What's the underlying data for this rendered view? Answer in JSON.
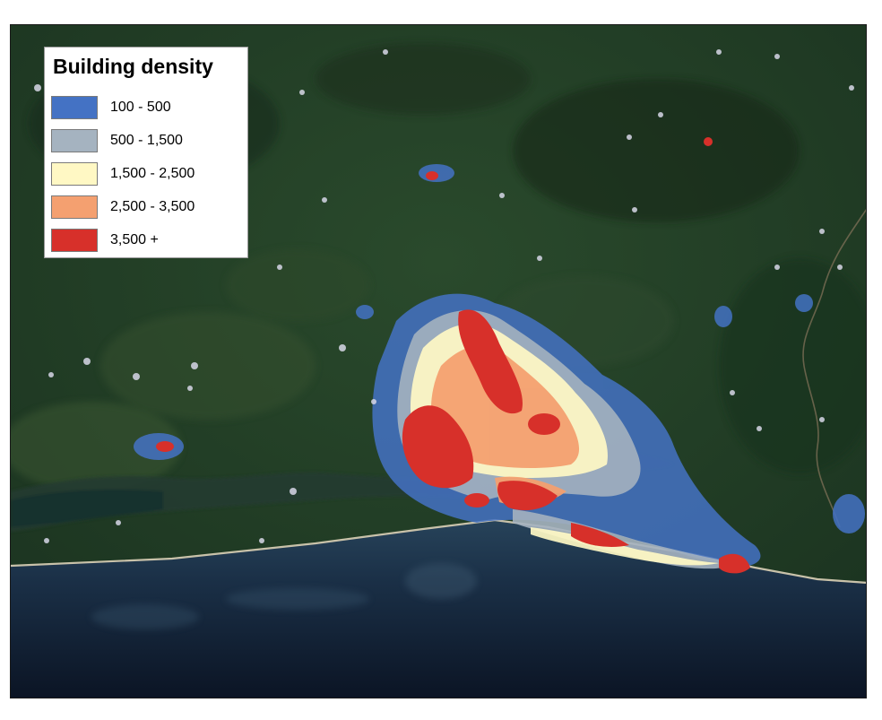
{
  "legend": {
    "title": "Building density",
    "items": [
      {
        "label": "100 - 500",
        "color": "#4472c4"
      },
      {
        "label": "500 - 1,500",
        "color": "#a5b3c0"
      },
      {
        "label": "1,500 - 2,500",
        "color": "#fff8c4"
      },
      {
        "label": "2,500 - 3,500",
        "color": "#f4a070"
      },
      {
        "label": "3,500 +",
        "color": "#d7302a"
      }
    ]
  },
  "colors": {
    "forest": "#1f3a22",
    "ocean": "#15263a",
    "deep_ocean": "#0b1424",
    "coastline": "#c8c0a8"
  }
}
